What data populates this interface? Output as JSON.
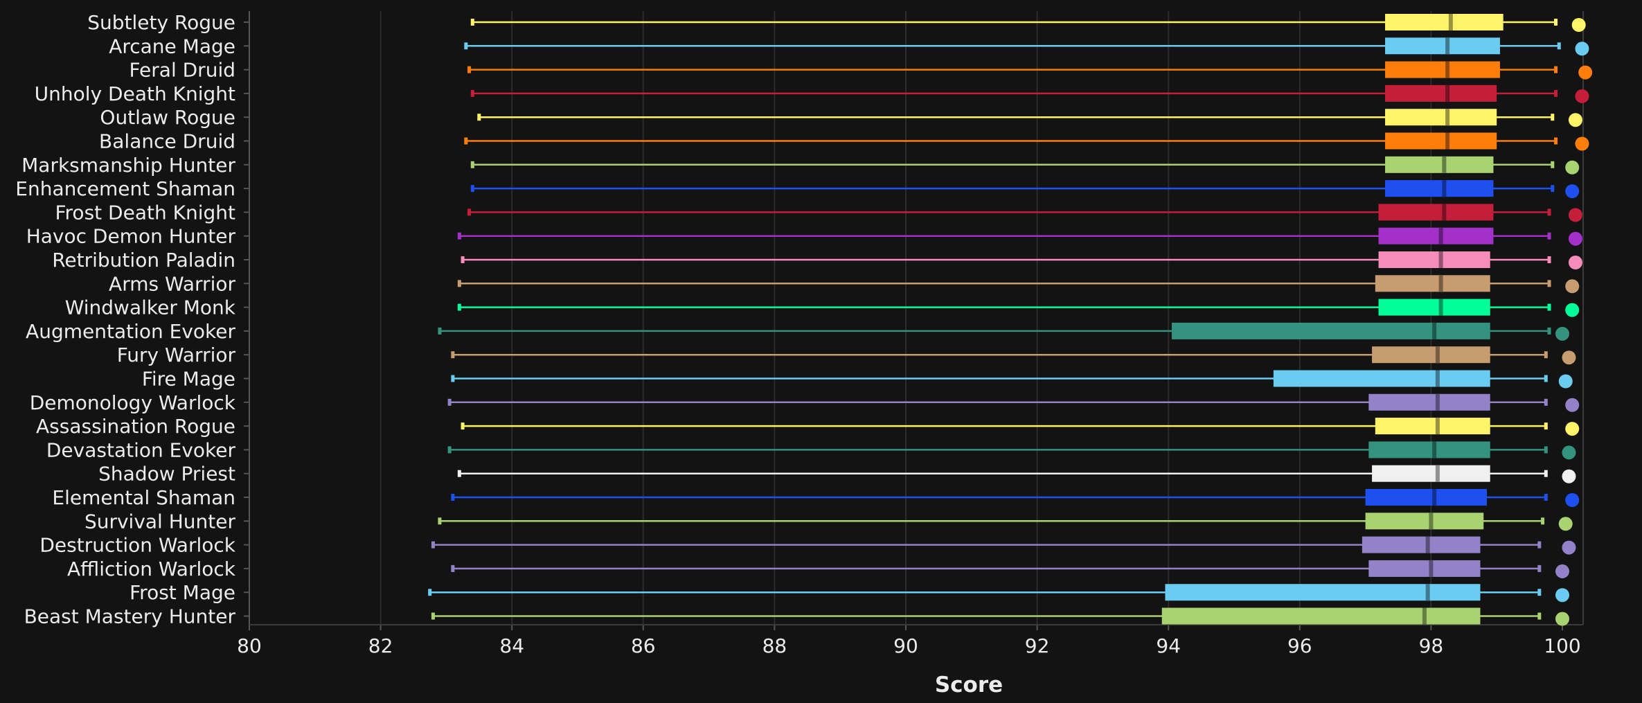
{
  "chart_data": {
    "type": "box",
    "title": "",
    "xlabel": "Score",
    "ylabel": "",
    "xlim": [
      80,
      100
    ],
    "x_ticks": [
      "80",
      "82",
      "84",
      "86",
      "88",
      "90",
      "92",
      "94",
      "96",
      "98",
      "100"
    ],
    "grid": "vertical",
    "legend": "none",
    "series": [
      {
        "name": "Subtlety Rogue",
        "color": "#FFF468",
        "min": 83.4,
        "q1": 97.3,
        "median": 98.3,
        "q3": 99.1,
        "max": 99.9,
        "dot": 100.25
      },
      {
        "name": "Arcane Mage",
        "color": "#69CCF0",
        "min": 83.3,
        "q1": 97.3,
        "median": 98.25,
        "q3": 99.05,
        "max": 99.95,
        "dot": 100.3
      },
      {
        "name": "Feral Druid",
        "color": "#FF7D0A",
        "min": 83.35,
        "q1": 97.3,
        "median": 98.25,
        "q3": 99.05,
        "max": 99.9,
        "dot": 100.35
      },
      {
        "name": "Unholy Death Knight",
        "color": "#C41E3A",
        "min": 83.4,
        "q1": 97.3,
        "median": 98.25,
        "q3": 99.0,
        "max": 99.9,
        "dot": 100.3
      },
      {
        "name": "Outlaw Rogue",
        "color": "#FFF468",
        "min": 83.5,
        "q1": 97.3,
        "median": 98.25,
        "q3": 99.0,
        "max": 99.85,
        "dot": 100.2
      },
      {
        "name": "Balance Druid",
        "color": "#FF7D0A",
        "min": 83.3,
        "q1": 97.3,
        "median": 98.25,
        "q3": 99.0,
        "max": 99.9,
        "dot": 100.3
      },
      {
        "name": "Marksmanship Hunter",
        "color": "#A9D271",
        "min": 83.4,
        "q1": 97.3,
        "median": 98.2,
        "q3": 98.95,
        "max": 99.85,
        "dot": 100.15
      },
      {
        "name": "Enhancement Shaman",
        "color": "#1E50F0",
        "min": 83.4,
        "q1": 97.3,
        "median": 98.2,
        "q3": 98.95,
        "max": 99.85,
        "dot": 100.15
      },
      {
        "name": "Frost Death Knight",
        "color": "#C41E3A",
        "min": 83.35,
        "q1": 97.2,
        "median": 98.2,
        "q3": 98.95,
        "max": 99.8,
        "dot": 100.2
      },
      {
        "name": "Havoc Demon Hunter",
        "color": "#A330C9",
        "min": 83.2,
        "q1": 97.2,
        "median": 98.15,
        "q3": 98.95,
        "max": 99.8,
        "dot": 100.2
      },
      {
        "name": "Retribution Paladin",
        "color": "#F58CBA",
        "min": 83.25,
        "q1": 97.2,
        "median": 98.15,
        "q3": 98.9,
        "max": 99.8,
        "dot": 100.2
      },
      {
        "name": "Arms Warrior",
        "color": "#C79C6E",
        "min": 83.2,
        "q1": 97.15,
        "median": 98.15,
        "q3": 98.9,
        "max": 99.8,
        "dot": 100.15
      },
      {
        "name": "Windwalker Monk",
        "color": "#00FF98",
        "min": 83.2,
        "q1": 97.2,
        "median": 98.15,
        "q3": 98.9,
        "max": 99.8,
        "dot": 100.15
      },
      {
        "name": "Augmentation Evoker",
        "color": "#33937F",
        "min": 82.9,
        "q1": 94.05,
        "median": 98.05,
        "q3": 98.9,
        "max": 99.8,
        "dot": 100.0
      },
      {
        "name": "Fury Warrior",
        "color": "#C79C6E",
        "min": 83.1,
        "q1": 97.1,
        "median": 98.1,
        "q3": 98.9,
        "max": 99.75,
        "dot": 100.1
      },
      {
        "name": "Fire Mage",
        "color": "#69CCF0",
        "min": 83.1,
        "q1": 95.6,
        "median": 98.1,
        "q3": 98.9,
        "max": 99.75,
        "dot": 100.05
      },
      {
        "name": "Demonology Warlock",
        "color": "#9482C9",
        "min": 83.05,
        "q1": 97.05,
        "median": 98.1,
        "q3": 98.9,
        "max": 99.75,
        "dot": 100.15
      },
      {
        "name": "Assassination Rogue",
        "color": "#FFF468",
        "min": 83.25,
        "q1": 97.15,
        "median": 98.1,
        "q3": 98.9,
        "max": 99.75,
        "dot": 100.15
      },
      {
        "name": "Devastation Evoker",
        "color": "#33937F",
        "min": 83.05,
        "q1": 97.05,
        "median": 98.05,
        "q3": 98.9,
        "max": 99.75,
        "dot": 100.1
      },
      {
        "name": "Shadow Priest",
        "color": "#F0F0F0",
        "min": 83.2,
        "q1": 97.1,
        "median": 98.1,
        "q3": 98.9,
        "max": 99.75,
        "dot": 100.1
      },
      {
        "name": "Elemental Shaman",
        "color": "#1E50F0",
        "min": 83.1,
        "q1": 97.0,
        "median": 98.05,
        "q3": 98.85,
        "max": 99.75,
        "dot": 100.15
      },
      {
        "name": "Survival Hunter",
        "color": "#A9D271",
        "min": 82.9,
        "q1": 97.0,
        "median": 98.0,
        "q3": 98.8,
        "max": 99.7,
        "dot": 100.05
      },
      {
        "name": "Destruction Warlock",
        "color": "#9482C9",
        "min": 82.8,
        "q1": 96.95,
        "median": 97.95,
        "q3": 98.75,
        "max": 99.65,
        "dot": 100.1
      },
      {
        "name": "Affliction Warlock",
        "color": "#9482C9",
        "min": 83.1,
        "q1": 97.05,
        "median": 98.0,
        "q3": 98.75,
        "max": 99.65,
        "dot": 100.0
      },
      {
        "name": "Frost Mage",
        "color": "#69CCF0",
        "min": 82.75,
        "q1": 93.95,
        "median": 97.95,
        "q3": 98.75,
        "max": 99.65,
        "dot": 100.0
      },
      {
        "name": "Beast Mastery Hunter",
        "color": "#A9D271",
        "min": 82.8,
        "q1": 93.9,
        "median": 97.9,
        "q3": 98.75,
        "max": 99.65,
        "dot": 100.0
      }
    ]
  }
}
